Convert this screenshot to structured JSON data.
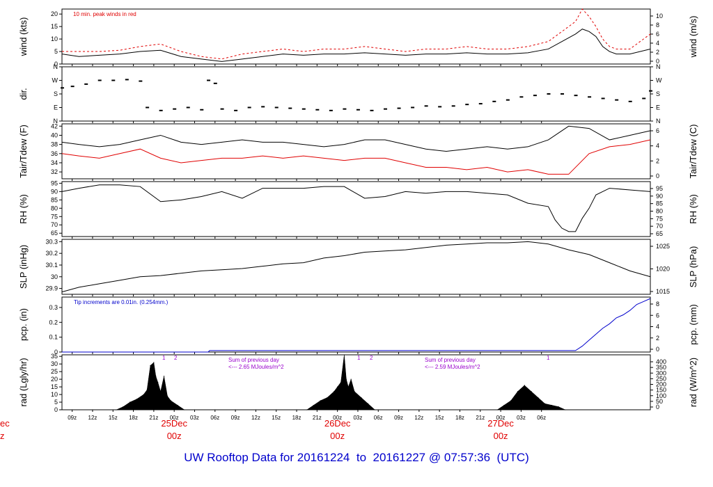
{
  "footer": {
    "prefix": "UW Rooftop Data for",
    "start": "20161224",
    "to": "to",
    "end": "20161227",
    "at": "@",
    "time": "07:57:36",
    "tz": "(UTC)"
  },
  "colors": {
    "black": "#000000",
    "red": "#e00000",
    "blue": "#0000cc",
    "purple": "#9900cc"
  },
  "time_axis": {
    "ticks": [
      "09z",
      "12z",
      "15z",
      "18z",
      "21z",
      "00z",
      "03z",
      "06z",
      "09z",
      "12z",
      "15z",
      "18z",
      "21z",
      "00z",
      "03z",
      "06z",
      "09z",
      "12z",
      "15z",
      "18z",
      "21z",
      "00z",
      "03z",
      "06z"
    ],
    "day_labels": [
      {
        "date": "25Dec",
        "hour": "00z"
      },
      {
        "date": "26Dec",
        "hour": "00z"
      },
      {
        "date": "27Dec",
        "hour": "00z"
      }
    ],
    "left_cut_labels": [
      "ec",
      "z"
    ]
  },
  "chart_data": [
    {
      "type": "line",
      "title": "10 min. peak winds in red",
      "ylabel": "wind (kts)",
      "ylabel_right": "wind (m/s)",
      "ylim": [
        0,
        22
      ],
      "yticks": [
        0,
        5,
        10,
        15,
        20
      ],
      "yticks_right": [
        0,
        2,
        4,
        6,
        8,
        10
      ],
      "series": [
        {
          "name": "mean",
          "color": "#000000",
          "x": [
            7.5,
            10,
            13,
            16,
            19,
            22,
            25,
            28,
            31,
            34,
            37,
            40,
            43,
            46,
            49,
            52,
            55,
            58,
            61,
            64,
            67,
            70,
            73,
            76,
            79,
            81,
            83,
            84,
            85,
            86,
            87,
            88,
            89,
            91,
            94
          ],
          "values": [
            4,
            3,
            3.5,
            4,
            5,
            5.5,
            3,
            2,
            1,
            2,
            3,
            4,
            3.5,
            4,
            4,
            4.5,
            4,
            3.5,
            4,
            4,
            4.5,
            4,
            4,
            4.5,
            6,
            9,
            12,
            14,
            13,
            11,
            7,
            5,
            4,
            4,
            6
          ]
        },
        {
          "name": "10 min. peak winds",
          "color": "#e00000",
          "x": [
            7.5,
            10,
            13,
            16,
            19,
            22,
            25,
            28,
            31,
            34,
            37,
            40,
            43,
            46,
            49,
            52,
            55,
            58,
            61,
            64,
            67,
            70,
            73,
            76,
            79,
            81,
            83,
            84,
            85,
            86,
            87,
            88,
            89,
            91,
            94
          ],
          "values": [
            5,
            5,
            5,
            5.5,
            7,
            8,
            5,
            3,
            2,
            4,
            5,
            6,
            5,
            6,
            6,
            7,
            6,
            5,
            6,
            6,
            7,
            6,
            6,
            7,
            9,
            13,
            17,
            22,
            19,
            15,
            10,
            7,
            6,
            6,
            12
          ]
        }
      ]
    },
    {
      "type": "scatter",
      "ylabel": "dir.",
      "yticks_labels": [
        "N",
        "E",
        "S",
        "W",
        "N"
      ],
      "ylim": [
        0,
        360
      ],
      "series": [
        {
          "name": "direction",
          "color": "#000000",
          "x": [
            7.5,
            9,
            11,
            13,
            15,
            17,
            19,
            20,
            22,
            24,
            26,
            28,
            29,
            30,
            31,
            33,
            35,
            37,
            39,
            41,
            43,
            45,
            47,
            49,
            51,
            53,
            55,
            57,
            59,
            61,
            63,
            65,
            67,
            69,
            71,
            73,
            75,
            77,
            79,
            81,
            83,
            85,
            87,
            89,
            91,
            93,
            94
          ],
          "values": [
            220,
            230,
            245,
            270,
            270,
            275,
            265,
            90,
            70,
            80,
            90,
            75,
            270,
            250,
            80,
            70,
            90,
            95,
            90,
            85,
            80,
            75,
            70,
            80,
            75,
            70,
            80,
            85,
            90,
            100,
            95,
            100,
            110,
            115,
            130,
            140,
            160,
            170,
            180,
            180,
            170,
            160,
            150,
            140,
            130,
            150,
            200
          ]
        }
      ]
    },
    {
      "type": "line",
      "ylabel": "Tair/Tdew (F)",
      "ylabel_right": "Tair/Tdew (C)",
      "ylim": [
        30.5,
        42.5
      ],
      "yticks": [
        32,
        34,
        36,
        38,
        40,
        42
      ],
      "yticks_right": [
        0,
        2,
        4,
        6
      ],
      "series": [
        {
          "name": "Tair",
          "color": "#000000",
          "x": [
            7.5,
            10,
            13,
            16,
            19,
            22,
            25,
            28,
            31,
            34,
            37,
            40,
            43,
            46,
            49,
            52,
            55,
            58,
            61,
            64,
            67,
            70,
            73,
            76,
            79,
            82,
            85,
            88,
            91,
            94
          ],
          "values": [
            38.5,
            38,
            37.5,
            38,
            39,
            40,
            38.5,
            38,
            38.5,
            39,
            38.5,
            38.5,
            38,
            37.5,
            38,
            39,
            39,
            38,
            37,
            36.5,
            37,
            37.5,
            37,
            37.5,
            39,
            42,
            41.5,
            39,
            40,
            41
          ]
        },
        {
          "name": "Tdew",
          "color": "#e00000",
          "x": [
            7.5,
            10,
            13,
            16,
            19,
            22,
            25,
            28,
            31,
            34,
            37,
            40,
            43,
            46,
            49,
            52,
            55,
            58,
            61,
            64,
            67,
            70,
            73,
            76,
            79,
            82,
            85,
            88,
            91,
            94
          ],
          "values": [
            36,
            35.5,
            35,
            36,
            37,
            35,
            34,
            34.5,
            35,
            35,
            35.5,
            35,
            35.5,
            35,
            34.5,
            35,
            35,
            34,
            33,
            33,
            32.5,
            33,
            32,
            32.5,
            31.5,
            31.5,
            36,
            37.5,
            38,
            39
          ]
        }
      ]
    },
    {
      "type": "line",
      "ylabel": "RH (%)",
      "ylabel_right": "RH (%)",
      "ylim": [
        63,
        96
      ],
      "yticks": [
        65,
        70,
        75,
        80,
        85,
        90,
        95
      ],
      "yticks_right": [
        65,
        70,
        75,
        80,
        85,
        90,
        95
      ],
      "series": [
        {
          "name": "RH",
          "color": "#000000",
          "x": [
            7.5,
            10,
            13,
            16,
            19,
            22,
            25,
            28,
            31,
            34,
            37,
            40,
            43,
            46,
            49,
            52,
            55,
            58,
            61,
            64,
            67,
            70,
            73,
            76,
            79,
            80,
            81,
            82,
            83,
            84,
            85,
            86,
            88,
            91,
            94
          ],
          "values": [
            90,
            92,
            94,
            94,
            93,
            84,
            85,
            87,
            90,
            86,
            92,
            92,
            92,
            93,
            93,
            86,
            87,
            90,
            89,
            90,
            90,
            89,
            88,
            83,
            81,
            73,
            68,
            66,
            66,
            74,
            80,
            88,
            92,
            91,
            90
          ]
        }
      ]
    },
    {
      "type": "line",
      "ylabel": "SLP (inHg)",
      "ylabel_right": "SLP (hPa)",
      "ylim": [
        29.85,
        30.32
      ],
      "yticks": [
        29.9,
        30.0,
        30.1,
        30.2,
        30.3
      ],
      "yticks_right": [
        1015,
        1020,
        1025
      ],
      "series": [
        {
          "name": "SLP",
          "color": "#000000",
          "x": [
            7.5,
            10,
            13,
            16,
            19,
            22,
            25,
            28,
            31,
            34,
            37,
            40,
            43,
            46,
            49,
            52,
            55,
            58,
            61,
            64,
            67,
            70,
            73,
            76,
            79,
            82,
            85,
            88,
            91,
            94
          ],
          "values": [
            29.87,
            29.91,
            29.94,
            29.97,
            30.0,
            30.01,
            30.03,
            30.05,
            30.06,
            30.07,
            30.09,
            30.11,
            30.12,
            30.16,
            30.18,
            30.21,
            30.22,
            30.23,
            30.25,
            30.27,
            30.28,
            30.29,
            30.29,
            30.3,
            30.28,
            30.23,
            30.19,
            30.12,
            30.05,
            30.0
          ]
        }
      ]
    },
    {
      "type": "line",
      "title": "Tip increments are 0.01in. (0.254mm.)",
      "ylabel": "pcp. (in)",
      "ylabel_right": "pcp. (mm)",
      "ylim": [
        0,
        0.37
      ],
      "yticks": [
        0.0,
        0.1,
        0.2,
        0.3
      ],
      "yticks_right": [
        0,
        2,
        4,
        6,
        8
      ],
      "series": [
        {
          "name": "pcp",
          "color": "#0000cc",
          "x": [
            7.5,
            29,
            29.2,
            83,
            84,
            85,
            86,
            87,
            88,
            89,
            90,
            91,
            92,
            93,
            94
          ],
          "values": [
            0.0,
            0.0,
            0.01,
            0.01,
            0.04,
            0.08,
            0.12,
            0.16,
            0.19,
            0.23,
            0.25,
            0.28,
            0.32,
            0.34,
            0.36
          ]
        }
      ]
    },
    {
      "type": "area",
      "ylabel": "rad (Lgly/hr)",
      "ylabel_right": "rad (W/m^2)",
      "ylim": [
        0,
        36
      ],
      "yticks": [
        0,
        5,
        10,
        15,
        20,
        25,
        30,
        35
      ],
      "yticks_right": [
        0,
        50,
        100,
        150,
        200,
        250,
        300,
        350,
        400
      ],
      "annotations": [
        "1",
        "2",
        "Sum of previous day",
        "<--- 2.65 MJoules/m^2",
        "1",
        "2",
        "Sum of previous day",
        "<--- 2.59 MJoules/m^2",
        "1"
      ],
      "series": [
        {
          "name": "radiation",
          "color": "#000000",
          "x": [
            15.5,
            16.5,
            17.5,
            18.5,
            19.5,
            20,
            20.5,
            21,
            21.3,
            21.6,
            22,
            22.5,
            23,
            23.5,
            24.5,
            25.5,
            43.5,
            44.5,
            45.5,
            46.5,
            47.5,
            48,
            48.5,
            49,
            49.3,
            49.6,
            50,
            50.5,
            51.5,
            52.5,
            53.5,
            71.5,
            72.5,
            73.5,
            74.5,
            75.5,
            76.5,
            77.5,
            78.5,
            79.5,
            80.5,
            81.5
          ],
          "values": [
            0,
            2,
            5,
            7,
            10,
            13,
            29,
            31,
            22,
            18,
            12,
            22,
            9,
            6,
            3,
            0,
            0,
            3,
            6,
            8,
            12,
            15,
            18,
            36,
            20,
            15,
            20,
            12,
            8,
            4,
            0,
            0,
            3,
            6,
            12,
            16,
            12,
            8,
            4,
            3,
            2,
            0
          ]
        }
      ]
    }
  ]
}
